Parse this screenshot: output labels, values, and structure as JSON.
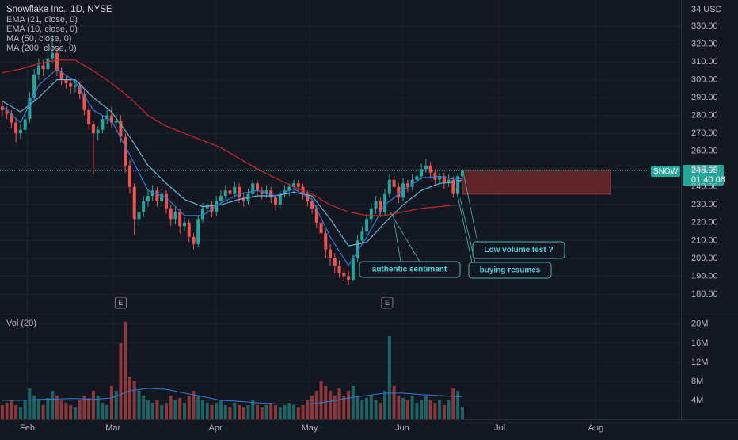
{
  "chart_data": {
    "type": "candlestick",
    "title": "Snowflake Inc., 1D, NYSE",
    "up_color": "#26a69a",
    "down_color": "#ef5350",
    "open": [
      285,
      283,
      281,
      276,
      270,
      272,
      278,
      290,
      303,
      308,
      306,
      312,
      315,
      305,
      300,
      298,
      296,
      297,
      292,
      283,
      275,
      270,
      272,
      278,
      280,
      276,
      277,
      268,
      252,
      240,
      222,
      226,
      232,
      235,
      238,
      232,
      236,
      228,
      222,
      226,
      218,
      220,
      212,
      208,
      222,
      228,
      230,
      226,
      232,
      235,
      238,
      236,
      240,
      234,
      232,
      236,
      242,
      238,
      236,
      238,
      234,
      230,
      236,
      238,
      240,
      242,
      240,
      236,
      232,
      228,
      220,
      214,
      205,
      200,
      196,
      192,
      190,
      188,
      200,
      210,
      215,
      222,
      228,
      232,
      226,
      236,
      244,
      240,
      234,
      242,
      240,
      244,
      246,
      250,
      252,
      248,
      244,
      246,
      242,
      244,
      236,
      246
    ],
    "high": [
      288,
      285,
      283,
      278,
      275,
      281,
      293,
      306,
      312,
      311,
      316,
      325,
      318,
      307,
      302,
      300,
      299,
      299,
      294,
      285,
      277,
      274,
      280,
      283,
      285,
      282,
      280,
      270,
      255,
      242,
      230,
      235,
      238,
      241,
      240,
      239,
      238,
      230,
      229,
      228,
      223,
      222,
      214,
      224,
      231,
      233,
      232,
      235,
      238,
      241,
      240,
      243,
      242,
      237,
      239,
      244,
      244,
      240,
      241,
      240,
      236,
      238,
      241,
      242,
      244,
      244,
      242,
      238,
      234,
      230,
      222,
      216,
      208,
      203,
      199,
      195,
      193,
      202,
      213,
      218,
      225,
      231,
      235,
      234,
      239,
      247,
      246,
      242,
      245,
      244,
      247,
      249,
      253,
      256,
      254,
      250,
      248,
      248,
      247,
      246,
      248,
      250
    ],
    "low": [
      280,
      278,
      273,
      265,
      267,
      270,
      276,
      288,
      300,
      302,
      303,
      309,
      302,
      297,
      295,
      292,
      293,
      289,
      280,
      272,
      247,
      266,
      270,
      275,
      273,
      274,
      265,
      248,
      236,
      213,
      218,
      223,
      229,
      232,
      229,
      229,
      225,
      218,
      219,
      214,
      215,
      209,
      205,
      206,
      220,
      225,
      223,
      224,
      230,
      233,
      233,
      234,
      231,
      229,
      230,
      234,
      235,
      233,
      234,
      231,
      227,
      228,
      234,
      235,
      237,
      237,
      233,
      229,
      225,
      217,
      210,
      200,
      196,
      192,
      189,
      187,
      185,
      187,
      198,
      208,
      213,
      220,
      225,
      223,
      224,
      234,
      237,
      231,
      232,
      237,
      238,
      242,
      244,
      248,
      245,
      241,
      241,
      239,
      240,
      234,
      234,
      245
    ],
    "close": [
      283,
      281,
      276,
      270,
      272,
      278,
      290,
      303,
      308,
      306,
      312,
      315,
      305,
      300,
      298,
      296,
      297,
      292,
      283,
      275,
      270,
      272,
      278,
      280,
      276,
      277,
      268,
      252,
      240,
      222,
      226,
      232,
      235,
      238,
      232,
      236,
      228,
      222,
      226,
      218,
      220,
      212,
      208,
      222,
      228,
      230,
      226,
      232,
      235,
      238,
      236,
      240,
      234,
      232,
      236,
      242,
      238,
      236,
      238,
      234,
      230,
      236,
      238,
      240,
      242,
      240,
      236,
      232,
      228,
      220,
      214,
      205,
      200,
      196,
      192,
      190,
      188,
      200,
      210,
      215,
      222,
      228,
      232,
      226,
      236,
      244,
      240,
      234,
      242,
      240,
      244,
      246,
      250,
      252,
      248,
      244,
      246,
      242,
      244,
      236,
      246,
      248.95
    ],
    "indicator_x": [
      0,
      4,
      8,
      12,
      16,
      20,
      24,
      28,
      32,
      36,
      40,
      44,
      48,
      52,
      56,
      60,
      64,
      68,
      72,
      76,
      80,
      84,
      88,
      92,
      96,
      100,
      101
    ],
    "indicators": [
      {
        "name": "EMA (21, close, 0)",
        "color": "#5fb8d8",
        "values": [
          288,
          282,
          290,
          300,
          300,
          290,
          282,
          268,
          252,
          242,
          233,
          229,
          230,
          233,
          235,
          235,
          237,
          235,
          222,
          207,
          209,
          220,
          230,
          238,
          242,
          243,
          244
        ]
      },
      {
        "name": "EMA (10, close, 0)",
        "color": "#2f7bd8",
        "values": [
          285,
          276,
          297,
          306,
          299,
          283,
          277,
          258,
          238,
          234,
          224,
          224,
          231,
          236,
          238,
          235,
          239,
          233,
          212,
          196,
          212,
          230,
          238,
          245,
          246,
          244,
          245
        ]
      },
      {
        "name": "MA (50, close, 0)",
        "color": "#c62828",
        "values": [
          304,
          306,
          309,
          311,
          311,
          305,
          298,
          290,
          280,
          274,
          270,
          266,
          262,
          256,
          250,
          245,
          240,
          236,
          230,
          226,
          224,
          224,
          226,
          228,
          229,
          230,
          230
        ]
      },
      {
        "name": "MA (200, close, 0)"
      }
    ],
    "xlim": [
      -0.5,
      149
    ],
    "xticks": [
      {
        "value": 5.5,
        "label": "Feb"
      },
      {
        "value": 24.3,
        "label": "Mar"
      },
      {
        "value": 46.8,
        "label": "Apr"
      },
      {
        "value": 67.5,
        "label": "May"
      },
      {
        "value": 87.8,
        "label": "Jun"
      },
      {
        "value": 109.2,
        "label": "Jul"
      },
      {
        "value": 130.3,
        "label": "Aug"
      }
    ],
    "ylim": [
      170.66,
      344.65
    ],
    "yticks": [
      {
        "value": 330,
        "label": "330.00"
      },
      {
        "value": 320,
        "label": "320.00"
      },
      {
        "value": 310,
        "label": "310.00"
      },
      {
        "value": 300,
        "label": "300.00"
      },
      {
        "value": 290,
        "label": "290.00"
      },
      {
        "value": 280,
        "label": "280.00"
      },
      {
        "value": 270,
        "label": "270.00"
      },
      {
        "value": 260,
        "label": "260.00"
      },
      {
        "value": 250,
        "label": "250.00"
      },
      {
        "value": 240,
        "label": "240.00"
      },
      {
        "value": 230,
        "label": "230.00"
      },
      {
        "value": 220,
        "label": "220.00"
      },
      {
        "value": 210,
        "label": "210.00"
      },
      {
        "value": 200,
        "label": "200.00"
      },
      {
        "value": 190,
        "label": "190.00"
      },
      {
        "value": 180,
        "label": "180.00"
      }
    ],
    "axis_unit_label": "34 USD",
    "grid": true,
    "symbol": "SNOW",
    "last_price": 248.95,
    "countdown": "01:40:06",
    "zone": {
      "x": [
        101,
        133.5
      ],
      "y": [
        236,
        249.5
      ],
      "color": "#7a2a2e"
    },
    "annotations": [
      "authentic sentiment",
      "buying resumes",
      "Low volume test ?"
    ],
    "earnings": {
      "label": "E",
      "x": [
        26,
        84.5
      ]
    },
    "volume": {
      "name": "Vol (20)",
      "values": [
        3,
        3.5,
        4,
        3,
        2.5,
        4,
        6.5,
        5,
        4,
        3,
        4.5,
        6,
        5,
        4,
        3.5,
        3,
        2.5,
        4,
        5,
        4.5,
        6,
        5,
        3.5,
        3,
        7,
        6,
        16,
        20.5,
        9,
        8,
        6,
        5,
        4,
        3.5,
        4,
        3,
        3.5,
        5,
        4,
        4.5,
        3.5,
        5,
        6,
        5,
        4,
        3.5,
        3,
        3.5,
        4,
        3,
        2.5,
        3.5,
        3,
        2.5,
        3,
        4,
        3,
        2.5,
        3,
        3.5,
        3,
        2.5,
        3,
        3.5,
        3,
        2.5,
        3,
        4,
        5,
        6,
        8,
        7,
        6,
        5,
        6.5,
        5,
        6,
        7,
        5,
        4,
        4.5,
        5,
        4,
        3.5,
        6,
        17.5,
        7,
        5,
        4.5,
        4,
        5,
        3.5,
        4,
        5,
        4,
        3.5,
        4,
        3,
        4,
        6.5,
        6,
        2.5
      ],
      "ma_color": "#2f7bd8",
      "ma": [
        4,
        4,
        4.2,
        4.3,
        4.4,
        4.2,
        4.5,
        6,
        6.5,
        6.3,
        5.5,
        4.8,
        4,
        3.8,
        3.5,
        3.3,
        3.2,
        3.3,
        3.8,
        4.5,
        5,
        5.5,
        5.5,
        5.2,
        5,
        4.8,
        4.8
      ],
      "ylim": [
        0,
        21.8
      ],
      "yticks": [
        {
          "value": 20,
          "label": "20M"
        },
        {
          "value": 16,
          "label": "16M"
        },
        {
          "value": 12,
          "label": "12M"
        },
        {
          "value": 8,
          "label": "8M"
        },
        {
          "value": 4,
          "label": "4M"
        }
      ]
    }
  }
}
